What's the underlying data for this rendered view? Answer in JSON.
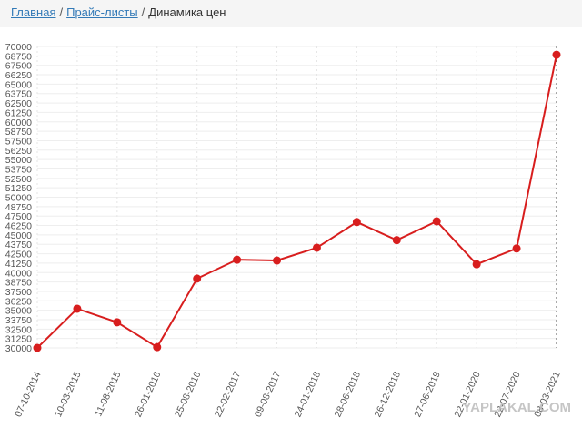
{
  "breadcrumb": {
    "items": [
      "Главная",
      "Прайс-листы",
      "Динамика цен"
    ],
    "separator": "/"
  },
  "watermark": "YAPLAKAL.COM",
  "chart_data": {
    "type": "line",
    "color": "#d81e1e",
    "grid": true,
    "categories": [
      "07-10-2014",
      "10-03-2015",
      "11-08-2015",
      "26-01-2016",
      "25-08-2016",
      "22-02-2017",
      "09-08-2017",
      "24-01-2018",
      "28-06-2018",
      "26-12-2018",
      "27-06-2019",
      "22-01-2020",
      "22-07-2020",
      "08-03-2021"
    ],
    "values": [
      30000,
      35200,
      33400,
      30100,
      39200,
      41700,
      41600,
      43300,
      46700,
      44300,
      46800,
      41100,
      43200,
      68900
    ],
    "ylim": [
      30000,
      70000
    ],
    "yticks": [
      30000,
      31250,
      32500,
      33750,
      35000,
      36250,
      37500,
      38750,
      40000,
      41250,
      42500,
      43750,
      45000,
      46250,
      47500,
      48750,
      50000,
      51250,
      52500,
      53750,
      55000,
      56250,
      57500,
      58750,
      60000,
      61250,
      62500,
      63750,
      65000,
      66250,
      67500,
      68750,
      70000
    ]
  }
}
